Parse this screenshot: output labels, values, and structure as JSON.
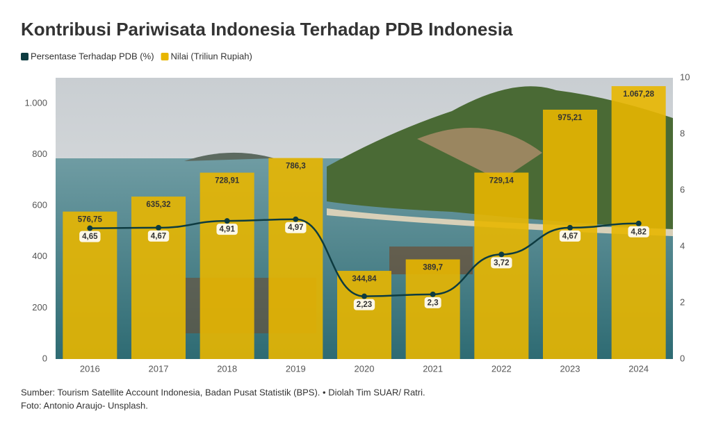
{
  "chart_data": {
    "type": "bar",
    "title": "Kontribusi Pariwisata Indonesia Terhadap PDB Indonesia",
    "categories": [
      "2016",
      "2017",
      "2018",
      "2019",
      "2020",
      "2021",
      "2022",
      "2023",
      "2024"
    ],
    "series": [
      {
        "name": "Persentase Terhadap PDB (%)",
        "type": "line",
        "axis": "y2",
        "color": "#0d3b40",
        "values": [
          4.65,
          4.67,
          4.91,
          4.97,
          2.23,
          2.3,
          3.72,
          4.67,
          4.82
        ],
        "value_labels": [
          "4,65",
          "4,67",
          "4,91",
          "4,97",
          "2,23",
          "2,3",
          "3,72",
          "4,67",
          "4,82"
        ]
      },
      {
        "name": "Nilai (Triliun Rupiah)",
        "type": "bar",
        "color": "#e8b600",
        "values": [
          576.75,
          635.32,
          728.91,
          786.3,
          344.84,
          389.7,
          729.14,
          975.21,
          1067.28
        ],
        "value_labels": [
          "576,75",
          "635,32",
          "728,91",
          "786,3",
          "344,84",
          "389,7",
          "729,14",
          "975,21",
          "1.067,28"
        ]
      }
    ],
    "ylim": [
      0,
      1100
    ],
    "yticks": [
      0,
      200,
      400,
      600,
      800,
      {
        "value": 1000,
        "label": "1.000"
      }
    ],
    "y2lim": [
      0,
      10
    ],
    "y2ticks": [
      0,
      2,
      4,
      6,
      8,
      10
    ],
    "source": "Sumber: Tourism Satellite Account Indonesia, Badan Pusat Statistik (BPS). • Diolah Tim SUAR/ Ratri.",
    "credit": "Foto: Antonio Araujo- Unsplash."
  }
}
